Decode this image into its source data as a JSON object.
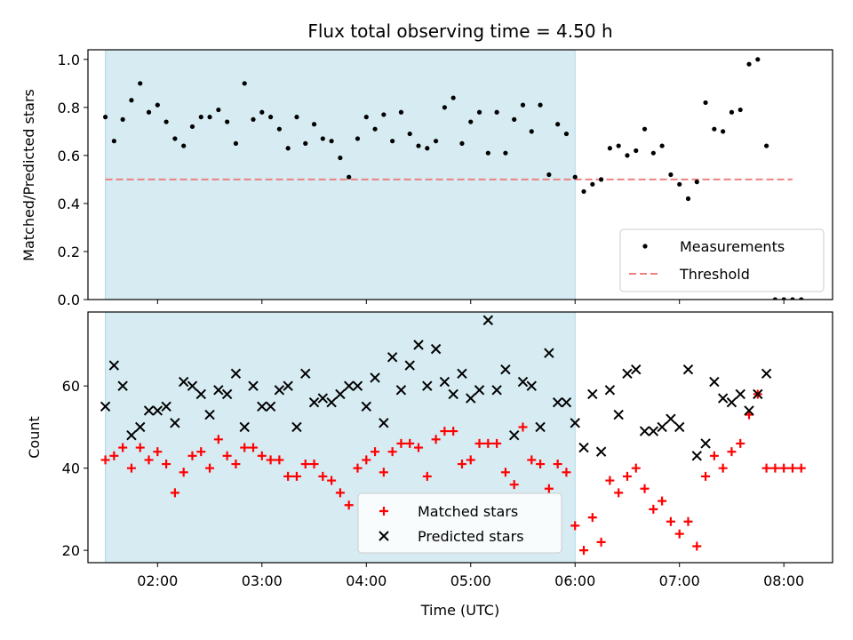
{
  "colors": {
    "measurement": "#000000",
    "threshold": "#f08080",
    "matched": "#ff0000",
    "predicted": "#000000",
    "shade": "#add8e6"
  },
  "chart_data": [
    {
      "type": "scatter",
      "title": "Flux total observing time = 4.50 h",
      "xlabel": "",
      "ylabel": "Matched/Predicted stars",
      "xlim": [
        "01:20",
        "08:28"
      ],
      "ylim": [
        0.0,
        1.04
      ],
      "yticks": [
        0.0,
        0.2,
        0.4,
        0.6,
        0.8,
        1.0
      ],
      "ytick_labels": [
        "0.0",
        "0.2",
        "0.4",
        "0.6",
        "0.8",
        "1.0"
      ],
      "shaded_region": [
        "01:30",
        "06:00"
      ],
      "legend_position": "lower-right",
      "threshold": {
        "name": "Threshold",
        "value": 0.5,
        "x_range": [
          "01:30",
          "08:05"
        ]
      },
      "series": [
        {
          "name": "Measurements",
          "points": [
            [
              "01:30",
              0.76
            ],
            [
              "01:35",
              0.66
            ],
            [
              "01:40",
              0.75
            ],
            [
              "01:45",
              0.83
            ],
            [
              "01:50",
              0.9
            ],
            [
              "01:55",
              0.78
            ],
            [
              "02:00",
              0.81
            ],
            [
              "02:05",
              0.74
            ],
            [
              "02:10",
              0.67
            ],
            [
              "02:15",
              0.64
            ],
            [
              "02:20",
              0.72
            ],
            [
              "02:25",
              0.76
            ],
            [
              "02:30",
              0.76
            ],
            [
              "02:35",
              0.79
            ],
            [
              "02:40",
              0.74
            ],
            [
              "02:45",
              0.65
            ],
            [
              "02:50",
              0.9
            ],
            [
              "02:55",
              0.75
            ],
            [
              "03:00",
              0.78
            ],
            [
              "03:05",
              0.76
            ],
            [
              "03:10",
              0.71
            ],
            [
              "03:15",
              0.63
            ],
            [
              "03:20",
              0.76
            ],
            [
              "03:25",
              0.65
            ],
            [
              "03:30",
              0.73
            ],
            [
              "03:35",
              0.67
            ],
            [
              "03:40",
              0.66
            ],
            [
              "03:45",
              0.59
            ],
            [
              "03:50",
              0.51
            ],
            [
              "03:55",
              0.67
            ],
            [
              "04:00",
              0.76
            ],
            [
              "04:05",
              0.71
            ],
            [
              "04:10",
              0.77
            ],
            [
              "04:15",
              0.66
            ],
            [
              "04:20",
              0.78
            ],
            [
              "04:25",
              0.69
            ],
            [
              "04:30",
              0.64
            ],
            [
              "04:35",
              0.63
            ],
            [
              "04:40",
              0.66
            ],
            [
              "04:45",
              0.8
            ],
            [
              "04:50",
              0.84
            ],
            [
              "04:55",
              0.65
            ],
            [
              "05:00",
              0.74
            ],
            [
              "05:05",
              0.78
            ],
            [
              "05:10",
              0.61
            ],
            [
              "05:15",
              0.78
            ],
            [
              "05:20",
              0.61
            ],
            [
              "05:25",
              0.75
            ],
            [
              "05:30",
              0.81
            ],
            [
              "05:35",
              0.7
            ],
            [
              "05:40",
              0.81
            ],
            [
              "05:45",
              0.52
            ],
            [
              "05:50",
              0.73
            ],
            [
              "05:55",
              0.69
            ],
            [
              "06:00",
              0.51
            ],
            [
              "06:05",
              0.45
            ],
            [
              "06:10",
              0.48
            ],
            [
              "06:15",
              0.5
            ],
            [
              "06:20",
              0.63
            ],
            [
              "06:25",
              0.64
            ],
            [
              "06:30",
              0.6
            ],
            [
              "06:35",
              0.62
            ],
            [
              "06:40",
              0.71
            ],
            [
              "06:45",
              0.61
            ],
            [
              "06:50",
              0.64
            ],
            [
              "06:55",
              0.52
            ],
            [
              "07:00",
              0.48
            ],
            [
              "07:05",
              0.42
            ],
            [
              "07:10",
              0.49
            ],
            [
              "07:15",
              0.82
            ],
            [
              "07:20",
              0.71
            ],
            [
              "07:25",
              0.7
            ],
            [
              "07:30",
              0.78
            ],
            [
              "07:35",
              0.79
            ],
            [
              "07:40",
              0.98
            ],
            [
              "07:45",
              1.0
            ],
            [
              "07:50",
              0.64
            ],
            [
              "07:55",
              0.0
            ],
            [
              "08:00",
              0.0
            ],
            [
              "08:05",
              0.0
            ],
            [
              "08:10",
              0.0
            ]
          ]
        }
      ]
    },
    {
      "type": "scatter",
      "title": "",
      "xlabel": "Time (UTC)",
      "ylabel": "Count",
      "xlim": [
        "01:20",
        "08:28"
      ],
      "ylim": [
        17,
        78
      ],
      "yticks": [
        20,
        40,
        60
      ],
      "ytick_labels": [
        "20",
        "40",
        "60"
      ],
      "xticks": [
        "02:00",
        "03:00",
        "04:00",
        "05:00",
        "06:00",
        "07:00",
        "08:00"
      ],
      "xtick_labels": [
        "02:00",
        "03:00",
        "04:00",
        "05:00",
        "06:00",
        "07:00",
        "08:00"
      ],
      "shaded_region": [
        "01:30",
        "06:00"
      ],
      "legend_position": "lower-center",
      "series": [
        {
          "name": "Matched stars",
          "points": [
            [
              "01:30",
              42
            ],
            [
              "01:35",
              43
            ],
            [
              "01:40",
              45
            ],
            [
              "01:45",
              40
            ],
            [
              "01:50",
              45
            ],
            [
              "01:55",
              42
            ],
            [
              "02:00",
              44
            ],
            [
              "02:05",
              41
            ],
            [
              "02:10",
              34
            ],
            [
              "02:15",
              39
            ],
            [
              "02:20",
              43
            ],
            [
              "02:25",
              44
            ],
            [
              "02:30",
              40
            ],
            [
              "02:35",
              47
            ],
            [
              "02:40",
              43
            ],
            [
              "02:45",
              41
            ],
            [
              "02:50",
              45
            ],
            [
              "02:55",
              45
            ],
            [
              "03:00",
              43
            ],
            [
              "03:05",
              42
            ],
            [
              "03:10",
              42
            ],
            [
              "03:15",
              38
            ],
            [
              "03:20",
              38
            ],
            [
              "03:25",
              41
            ],
            [
              "03:30",
              41
            ],
            [
              "03:35",
              38
            ],
            [
              "03:40",
              37
            ],
            [
              "03:45",
              34
            ],
            [
              "03:50",
              31
            ],
            [
              "03:55",
              40
            ],
            [
              "04:00",
              42
            ],
            [
              "04:05",
              44
            ],
            [
              "04:10",
              39
            ],
            [
              "04:15",
              44
            ],
            [
              "04:20",
              46
            ],
            [
              "04:25",
              46
            ],
            [
              "04:30",
              45
            ],
            [
              "04:35",
              38
            ],
            [
              "04:40",
              47
            ],
            [
              "04:45",
              49
            ],
            [
              "04:50",
              49
            ],
            [
              "04:55",
              41
            ],
            [
              "05:00",
              42
            ],
            [
              "05:05",
              46
            ],
            [
              "05:10",
              46
            ],
            [
              "05:15",
              46
            ],
            [
              "05:20",
              39
            ],
            [
              "05:25",
              36
            ],
            [
              "05:30",
              50
            ],
            [
              "05:35",
              42
            ],
            [
              "05:40",
              41
            ],
            [
              "05:45",
              35
            ],
            [
              "05:50",
              41
            ],
            [
              "05:55",
              39
            ],
            [
              "06:00",
              26
            ],
            [
              "06:05",
              20
            ],
            [
              "06:10",
              28
            ],
            [
              "06:15",
              22
            ],
            [
              "06:20",
              37
            ],
            [
              "06:25",
              34
            ],
            [
              "06:30",
              38
            ],
            [
              "06:35",
              40
            ],
            [
              "06:40",
              35
            ],
            [
              "06:45",
              30
            ],
            [
              "06:50",
              32
            ],
            [
              "06:55",
              27
            ],
            [
              "07:00",
              24
            ],
            [
              "07:05",
              27
            ],
            [
              "07:10",
              21
            ],
            [
              "07:15",
              38
            ],
            [
              "07:20",
              43
            ],
            [
              "07:25",
              40
            ],
            [
              "07:30",
              44
            ],
            [
              "07:35",
              46
            ],
            [
              "07:40",
              53
            ],
            [
              "07:45",
              58
            ],
            [
              "07:50",
              40
            ],
            [
              "07:55",
              40
            ],
            [
              "08:00",
              40
            ],
            [
              "08:05",
              40
            ],
            [
              "08:10",
              40
            ]
          ]
        },
        {
          "name": "Predicted stars",
          "points": [
            [
              "01:30",
              55
            ],
            [
              "01:35",
              65
            ],
            [
              "01:40",
              60
            ],
            [
              "01:45",
              48
            ],
            [
              "01:50",
              50
            ],
            [
              "01:55",
              54
            ],
            [
              "02:00",
              54
            ],
            [
              "02:05",
              55
            ],
            [
              "02:10",
              51
            ],
            [
              "02:15",
              61
            ],
            [
              "02:20",
              60
            ],
            [
              "02:25",
              58
            ],
            [
              "02:30",
              53
            ],
            [
              "02:35",
              59
            ],
            [
              "02:40",
              58
            ],
            [
              "02:45",
              63
            ],
            [
              "02:50",
              50
            ],
            [
              "02:55",
              60
            ],
            [
              "03:00",
              55
            ],
            [
              "03:05",
              55
            ],
            [
              "03:10",
              59
            ],
            [
              "03:15",
              60
            ],
            [
              "03:20",
              50
            ],
            [
              "03:25",
              63
            ],
            [
              "03:30",
              56
            ],
            [
              "03:35",
              57
            ],
            [
              "03:40",
              56
            ],
            [
              "03:45",
              58
            ],
            [
              "03:50",
              60
            ],
            [
              "03:55",
              60
            ],
            [
              "04:00",
              55
            ],
            [
              "04:05",
              62
            ],
            [
              "04:10",
              51
            ],
            [
              "04:15",
              67
            ],
            [
              "04:20",
              59
            ],
            [
              "04:25",
              65
            ],
            [
              "04:30",
              70
            ],
            [
              "04:35",
              60
            ],
            [
              "04:40",
              69
            ],
            [
              "04:45",
              61
            ],
            [
              "04:50",
              58
            ],
            [
              "04:55",
              63
            ],
            [
              "05:00",
              57
            ],
            [
              "05:05",
              59
            ],
            [
              "05:10",
              76
            ],
            [
              "05:15",
              59
            ],
            [
              "05:20",
              64
            ],
            [
              "05:25",
              48
            ],
            [
              "05:30",
              61
            ],
            [
              "05:35",
              60
            ],
            [
              "05:40",
              50
            ],
            [
              "05:45",
              68
            ],
            [
              "05:50",
              56
            ],
            [
              "05:55",
              56
            ],
            [
              "06:00",
              51
            ],
            [
              "06:05",
              45
            ],
            [
              "06:10",
              58
            ],
            [
              "06:15",
              44
            ],
            [
              "06:20",
              59
            ],
            [
              "06:25",
              53
            ],
            [
              "06:30",
              63
            ],
            [
              "06:35",
              64
            ],
            [
              "06:40",
              49
            ],
            [
              "06:45",
              49
            ],
            [
              "06:50",
              50
            ],
            [
              "06:55",
              52
            ],
            [
              "07:00",
              50
            ],
            [
              "07:05",
              64
            ],
            [
              "07:10",
              43
            ],
            [
              "07:15",
              46
            ],
            [
              "07:20",
              61
            ],
            [
              "07:25",
              57
            ],
            [
              "07:30",
              56
            ],
            [
              "07:35",
              58
            ],
            [
              "07:40",
              54
            ],
            [
              "07:45",
              58
            ],
            [
              "07:50",
              63
            ]
          ]
        }
      ]
    }
  ]
}
